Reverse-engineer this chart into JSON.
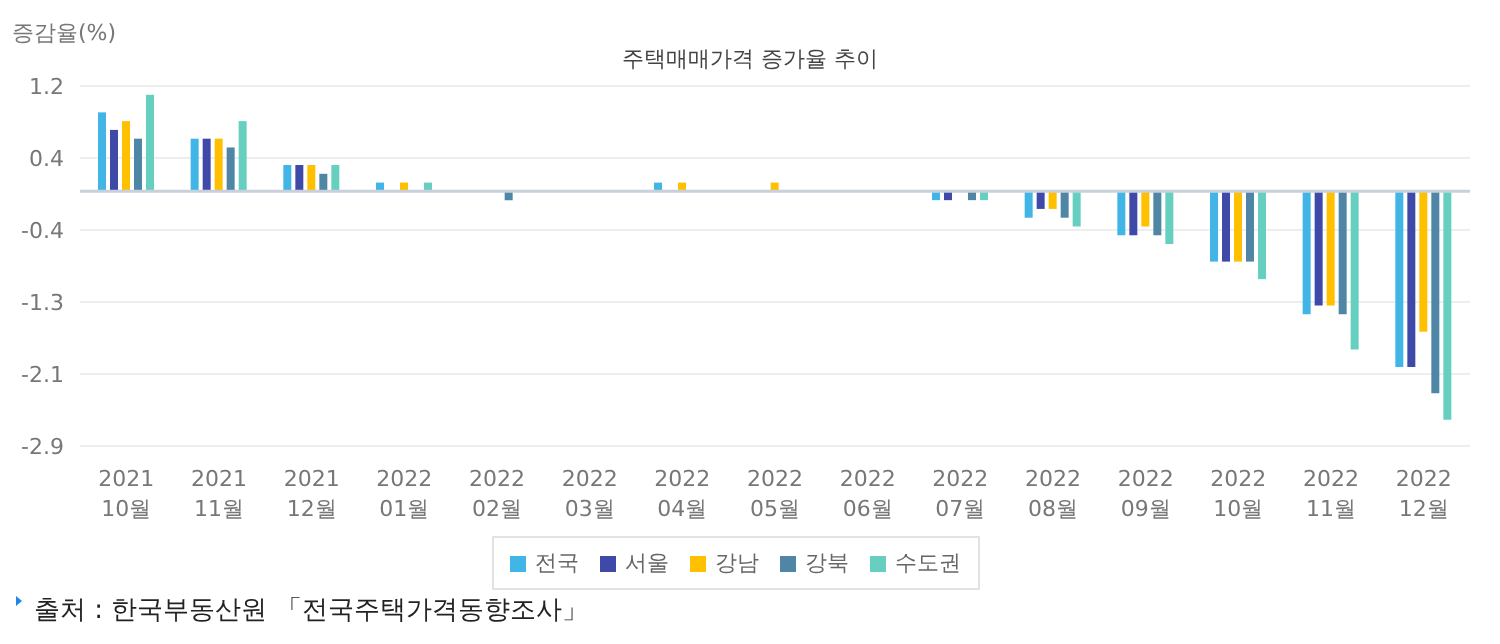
{
  "chart_data": {
    "type": "bar",
    "title": "주택매매가격 증가율 추이",
    "ylabel": "증감율(%)",
    "categories": [
      "2021\n10월",
      "2021\n11월",
      "2021\n12월",
      "2022\n01월",
      "2022\n02월",
      "2022\n03월",
      "2022\n04월",
      "2022\n05월",
      "2022\n06월",
      "2022\n07월",
      "2022\n08월",
      "2022\n09월",
      "2022\n10월",
      "2022\n11월",
      "2022\n12월"
    ],
    "series": [
      {
        "name": "전국",
        "color": "#41b6e6",
        "values": [
          0.9,
          0.6,
          0.3,
          0.1,
          0,
          0,
          0.1,
          0,
          0,
          -0.1,
          -0.3,
          -0.5,
          -0.8,
          -1.4,
          -2.0
        ]
      },
      {
        "name": "서울",
        "color": "#3f4aa8",
        "values": [
          0.7,
          0.6,
          0.3,
          0,
          0,
          0,
          0,
          0,
          0,
          -0.1,
          -0.2,
          -0.5,
          -0.8,
          -1.3,
          -2.0
        ]
      },
      {
        "name": "강남",
        "color": "#ffc000",
        "values": [
          0.8,
          0.6,
          0.3,
          0.1,
          0,
          0,
          0.1,
          0.1,
          0,
          0,
          -0.2,
          -0.4,
          -0.8,
          -1.3,
          -1.6
        ]
      },
      {
        "name": "강북",
        "color": "#4f86a5",
        "values": [
          0.6,
          0.5,
          0.2,
          0,
          -0.1,
          0,
          0,
          0,
          0,
          -0.1,
          -0.3,
          -0.5,
          -0.8,
          -1.4,
          -2.3
        ]
      },
      {
        "name": "수도권",
        "color": "#66cfc0",
        "values": [
          1.1,
          0.8,
          0.3,
          0.1,
          0,
          0,
          0,
          0,
          0,
          -0.1,
          -0.4,
          -0.6,
          -1.0,
          -1.8,
          -2.6
        ]
      }
    ],
    "ylim": [
      -2.9,
      1.2
    ],
    "yticks": [
      -2.9,
      {
        "value": -2.08,
        "label": "-2.1"
      },
      {
        "value": -1.26,
        "label": "-1.3"
      },
      {
        "value": -0.44,
        "label": "-0.4"
      },
      {
        "value": 0.38,
        "label": "0.4"
      },
      1.2
    ],
    "ref_lines": [
      {
        "axis": "y",
        "value": 0,
        "color": "#c8d0dc"
      }
    ],
    "grid": "y",
    "legend": "bottom",
    "annotations": [
      "출처 : 한국부동산원 「전국주택가격동향조사」"
    ]
  }
}
